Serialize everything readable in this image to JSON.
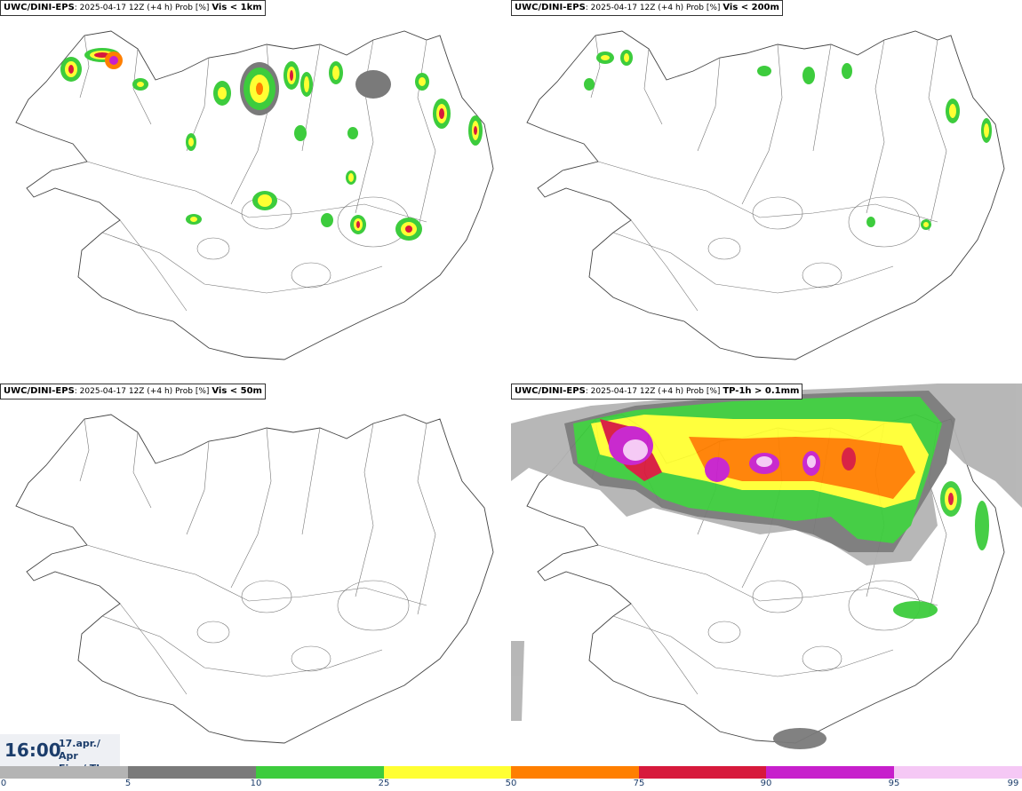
{
  "panels": [
    {
      "model": "UWC/DINI-EPS",
      "info": ": 2025-04-17 12Z (+4 h) Prob [%]",
      "variable": "Vis < 1km"
    },
    {
      "model": "UWC/DINI-EPS",
      "info": ": 2025-04-17 12Z (+4 h) Prob [%]",
      "variable": "Vis < 200m"
    },
    {
      "model": "UWC/DINI-EPS",
      "info": ": 2025-04-17 12Z (+4 h) Prob [%]",
      "variable": "Vis < 50m"
    },
    {
      "model": "UWC/DINI-EPS",
      "info": ": 2025-04-17 12Z (+4 h) Prob [%]",
      "variable": "TP-1h > 0.1mm"
    }
  ],
  "valid_time": {
    "time": "16:00",
    "date": "17.apr./ Apr",
    "day": "Fim./ Thu"
  },
  "colorbar": {
    "ticks": [
      "0",
      "5",
      "10",
      "25",
      "50",
      "75",
      "90",
      "95",
      "99"
    ],
    "colors": [
      "#ffffff",
      "#b4b4b4",
      "#7a7a7a",
      "#3dcc3d",
      "#ffff33",
      "#ff7f00",
      "#d7193c",
      "#c71fcc",
      "#f5c8f5"
    ]
  },
  "palette": {
    "p5": "#b4b4b4",
    "p10": "#7a7a7a",
    "p25": "#3dcc3d",
    "p50": "#ffff33",
    "p75": "#ff7f00",
    "p90": "#d7193c",
    "p95": "#c71fcc",
    "p99": "#f5c8f5"
  }
}
